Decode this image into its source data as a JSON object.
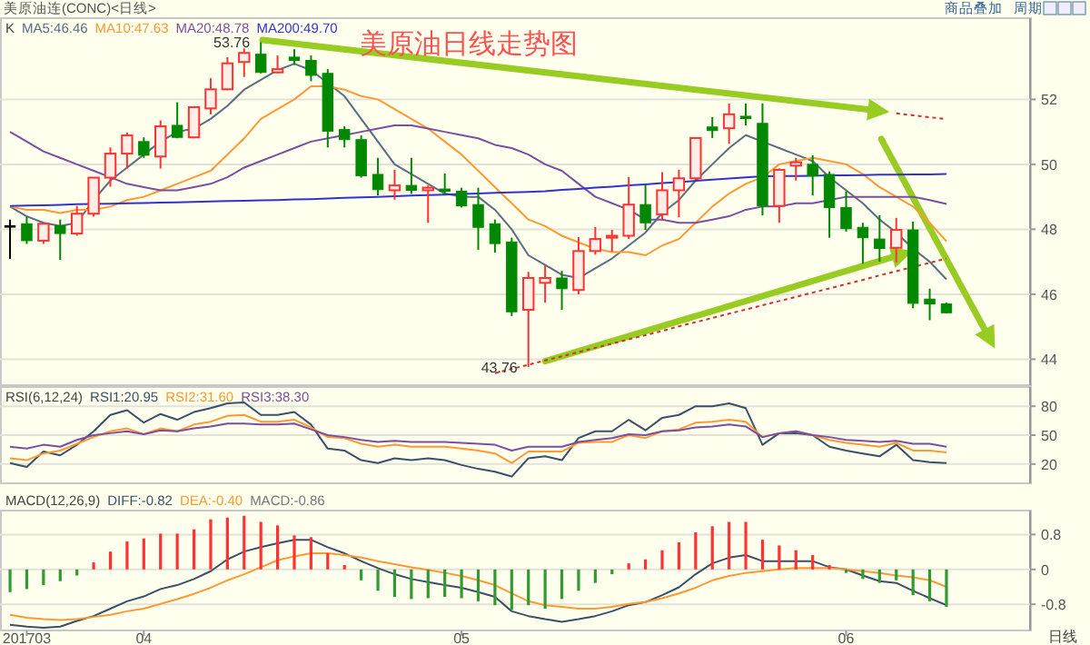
{
  "chart_data": [
    {
      "type": "candlestick",
      "title": "美原油日线走势图",
      "legend_title": "K",
      "legend": "top left",
      "grid": "y",
      "tick_labels": "y",
      "ylim": [
        43.2,
        54.5
      ],
      "yticks": [
        44,
        46,
        48,
        50,
        52
      ],
      "categories": [
        null,
        null,
        null,
        null,
        null,
        null,
        null,
        null,
        null,
        null,
        null,
        null,
        null,
        null,
        null,
        null,
        null,
        null,
        null,
        null,
        null,
        null,
        null,
        null,
        null,
        null,
        null,
        null,
        null,
        null,
        null,
        null,
        null,
        null,
        null,
        null,
        null,
        null,
        null,
        null,
        null,
        null,
        null,
        null,
        null,
        null,
        null,
        null,
        null,
        null,
        null,
        null,
        null,
        null,
        null,
        null,
        null
      ],
      "ohlc": [
        [
          48.11,
          48.3,
          47.09,
          48.11
        ],
        [
          48.17,
          48.39,
          47.55,
          47.65
        ],
        [
          47.65,
          48.17,
          47.55,
          48.17
        ],
        [
          48.11,
          48.3,
          47.06,
          47.87
        ],
        [
          47.87,
          48.72,
          47.8,
          48.48
        ],
        [
          48.48,
          49.59,
          48.39,
          49.59
        ],
        [
          49.59,
          50.52,
          49.31,
          50.33
        ],
        [
          50.33,
          50.98,
          49.87,
          50.89
        ],
        [
          50.7,
          50.83,
          50.2,
          50.28
        ],
        [
          50.24,
          51.35,
          49.87,
          51.17
        ],
        [
          51.2,
          51.91,
          50.8,
          50.83
        ],
        [
          50.83,
          51.76,
          50.8,
          51.76
        ],
        [
          51.72,
          52.65,
          51.54,
          52.31
        ],
        [
          52.31,
          53.3,
          52.28,
          53.11
        ],
        [
          53.15,
          53.57,
          52.69,
          53.43
        ],
        [
          53.39,
          53.76,
          52.8,
          52.83
        ],
        [
          52.83,
          53.35,
          52.8,
          52.93
        ],
        [
          53.3,
          53.54,
          53.06,
          53.2
        ],
        [
          53.2,
          53.35,
          52.56,
          52.74
        ],
        [
          52.8,
          52.93,
          50.52,
          51.02
        ],
        [
          51.07,
          51.17,
          50.52,
          50.76
        ],
        [
          50.76,
          50.89,
          49.59,
          49.65
        ],
        [
          49.69,
          50.2,
          49.04,
          49.22
        ],
        [
          49.2,
          49.83,
          48.91,
          49.35
        ],
        [
          49.35,
          50.2,
          49.09,
          49.2
        ],
        [
          49.2,
          49.35,
          48.2,
          49.28
        ],
        [
          49.24,
          49.72,
          49.09,
          49.17
        ],
        [
          49.17,
          49.28,
          48.67,
          48.72
        ],
        [
          48.76,
          49.28,
          47.37,
          48.06
        ],
        [
          48.17,
          48.3,
          47.28,
          47.56
        ],
        [
          47.61,
          47.74,
          45.33,
          45.46
        ],
        [
          45.52,
          46.69,
          43.76,
          46.5
        ],
        [
          46.35,
          46.89,
          45.74,
          46.5
        ],
        [
          46.5,
          46.72,
          45.52,
          46.17
        ],
        [
          46.13,
          47.76,
          46.0,
          47.33
        ],
        [
          47.33,
          48.07,
          47.22,
          47.7
        ],
        [
          47.74,
          47.98,
          47.31,
          47.8
        ],
        [
          47.8,
          49.61,
          47.7,
          48.76
        ],
        [
          48.76,
          49.37,
          47.98,
          48.2
        ],
        [
          48.46,
          49.76,
          48.28,
          49.2
        ],
        [
          49.2,
          49.83,
          48.37,
          49.57
        ],
        [
          49.57,
          50.81,
          49.52,
          50.81
        ],
        [
          51.15,
          51.46,
          50.81,
          51.04
        ],
        [
          51.11,
          51.87,
          50.63,
          51.54
        ],
        [
          51.48,
          51.87,
          51.2,
          51.41
        ],
        [
          51.26,
          51.87,
          48.43,
          48.72
        ],
        [
          48.72,
          49.87,
          48.2,
          49.83
        ],
        [
          49.96,
          50.2,
          49.5,
          50.06
        ],
        [
          50.0,
          50.28,
          49.04,
          49.65
        ],
        [
          49.69,
          49.78,
          47.74,
          48.67
        ],
        [
          48.67,
          49.17,
          47.93,
          48.02
        ],
        [
          48.06,
          48.2,
          46.94,
          47.74
        ],
        [
          47.7,
          48.43,
          47.0,
          47.41
        ],
        [
          47.43,
          48.35,
          46.98,
          47.98
        ],
        [
          47.98,
          48.24,
          45.57,
          45.72
        ],
        [
          45.85,
          46.17,
          45.2,
          45.7
        ],
        [
          45.7,
          45.74,
          45.41,
          45.43
        ]
      ],
      "colors": [
        "#000000",
        "#008800",
        "#ff3333",
        "#008800",
        "#ff3333",
        "#ff3333",
        "#ff3333",
        "#ff3333",
        "#008800",
        "#ff3333",
        "#008800",
        "#ff3333",
        "#ff3333",
        "#ff3333",
        "#ff3333",
        "#008800",
        "#ff3333",
        "#008800",
        "#008800",
        "#008800",
        "#008800",
        "#008800",
        "#008800",
        "#ff3333",
        "#008800",
        "#ff3333",
        "#008800",
        "#008800",
        "#008800",
        "#008800",
        "#008800",
        "#ff3333",
        "#ff3333",
        "#008800",
        "#ff3333",
        "#ff3333",
        "#ff3333",
        "#ff3333",
        "#008800",
        "#ff3333",
        "#ff3333",
        "#ff3333",
        "#008800",
        "#ff3333",
        "#008800",
        "#008800",
        "#ff3333",
        "#ff3333",
        "#008800",
        "#008800",
        "#008800",
        "#008800",
        "#008800",
        "#ff3333",
        "#008800",
        "#008800",
        "#008800"
      ],
      "series": [
        {
          "name": "MA5:46.46",
          "type": "line",
          "color": "#5a6e82",
          "values": [
            48.7,
            48.4,
            48.2,
            48.1,
            48.2,
            48.9,
            49.5,
            49.9,
            50.3,
            50.7,
            51.0,
            51.1,
            51.4,
            51.8,
            52.3,
            52.6,
            52.9,
            53.1,
            52.9,
            52.5,
            52.1,
            51.4,
            50.7,
            50.0,
            49.7,
            49.4,
            49.1,
            49.0,
            49.0,
            48.6,
            48.0,
            47.2,
            46.9,
            46.6,
            46.5,
            46.8,
            47.1,
            47.5,
            47.9,
            48.5,
            48.9,
            49.5,
            50.0,
            50.5,
            50.9,
            50.7,
            50.5,
            50.3,
            50.1,
            49.6,
            49.2,
            48.8,
            48.3,
            47.9,
            47.4,
            47.0,
            46.46
          ]
        },
        {
          "name": "MA10:47.63",
          "type": "line",
          "color": "#ff9933",
          "values": [
            48.7,
            48.6,
            48.6,
            48.5,
            48.6,
            48.6,
            48.7,
            48.9,
            49.0,
            49.2,
            49.4,
            49.6,
            49.8,
            50.3,
            50.8,
            51.4,
            51.7,
            52.0,
            52.4,
            52.4,
            52.3,
            52.1,
            52.0,
            51.7,
            51.4,
            51.1,
            50.7,
            50.3,
            49.8,
            49.3,
            48.8,
            48.3,
            48.1,
            47.8,
            47.6,
            47.4,
            47.3,
            47.3,
            47.2,
            47.5,
            47.7,
            48.2,
            48.7,
            49.1,
            49.4,
            49.6,
            50.0,
            50.1,
            50.2,
            50.1,
            50.0,
            49.7,
            49.3,
            49.0,
            48.7,
            48.2,
            47.63
          ]
        },
        {
          "name": "MA20:48.78",
          "type": "line",
          "color": "#7b4fa0",
          "values": [
            51.0,
            50.7,
            50.4,
            50.2,
            50.0,
            49.8,
            49.6,
            49.4,
            49.3,
            49.2,
            49.2,
            49.3,
            49.4,
            49.6,
            49.9,
            50.1,
            50.3,
            50.5,
            50.7,
            50.8,
            50.9,
            51.0,
            51.1,
            51.2,
            51.2,
            51.1,
            51.0,
            50.9,
            50.8,
            50.6,
            50.5,
            50.3,
            50.0,
            49.8,
            49.4,
            49.0,
            48.8,
            48.6,
            48.3,
            48.3,
            48.2,
            48.2,
            48.3,
            48.4,
            48.6,
            48.7,
            48.7,
            48.8,
            48.8,
            48.9,
            49.0,
            49.0,
            49.0,
            49.0,
            49.0,
            48.9,
            48.78
          ]
        },
        {
          "name": "MA200:49.70",
          "type": "line",
          "color": "#3333cc",
          "values": [
            48.72,
            48.73,
            48.74,
            48.75,
            48.77,
            48.78,
            48.79,
            48.8,
            48.81,
            48.82,
            48.83,
            48.84,
            48.86,
            48.87,
            48.88,
            48.89,
            48.9,
            48.92,
            48.93,
            48.95,
            48.97,
            48.98,
            49.0,
            49.02,
            49.04,
            49.05,
            49.07,
            49.09,
            49.1,
            49.12,
            49.14,
            49.15,
            49.17,
            49.21,
            49.24,
            49.28,
            49.31,
            49.35,
            49.38,
            49.42,
            49.45,
            49.49,
            49.53,
            49.56,
            49.6,
            49.63,
            49.64,
            49.64,
            49.65,
            49.66,
            49.66,
            49.67,
            49.68,
            49.68,
            49.69,
            49.69,
            49.7
          ]
        },
        {
          "type": "line",
          "color": "#cc3333",
          "line_style": "dotted",
          "values": [
            null,
            null,
            null,
            null,
            null,
            null,
            null,
            null,
            null,
            null,
            null,
            null,
            null,
            null,
            null,
            null,
            null,
            null,
            null,
            null,
            null,
            null,
            null,
            null,
            null,
            null,
            null,
            null,
            null,
            null,
            null,
            null,
            null,
            null,
            null,
            null,
            null,
            null,
            null,
            null,
            null,
            null,
            null,
            null,
            null,
            null,
            null,
            null,
            null,
            null,
            null,
            null,
            null,
            51.57,
            51.51,
            51.45,
            51.39
          ]
        },
        {
          "type": "line",
          "color": "#cc3333",
          "line_style": "dotted",
          "values": [
            null,
            null,
            null,
            null,
            null,
            null,
            null,
            null,
            null,
            null,
            null,
            null,
            null,
            null,
            null,
            null,
            null,
            null,
            null,
            null,
            null,
            null,
            null,
            null,
            null,
            null,
            null,
            null,
            null,
            43.57,
            43.7,
            43.83,
            43.96,
            44.09,
            44.22,
            44.35,
            44.48,
            44.61,
            44.74,
            44.87,
            45.01,
            45.14,
            45.27,
            45.4,
            45.53,
            45.66,
            45.79,
            45.92,
            46.05,
            46.18,
            46.31,
            46.44,
            46.58,
            46.71,
            46.84,
            46.97,
            47.1
          ]
        }
      ],
      "annotations": [
        "美原油连(CONC)<日线>",
        "商品叠加",
        "周期",
        "53.76",
        "43.76"
      ]
    },
    {
      "type": "line",
      "legend_title": "RSI(6,12,24)",
      "legend": "top left",
      "grid": "y",
      "tick_labels": "y",
      "ylim": [
        0,
        100
      ],
      "yticks": [
        20,
        50,
        80
      ],
      "categories": [
        null,
        null,
        null,
        null,
        null,
        null,
        null,
        null,
        null,
        null,
        null,
        null,
        null,
        null,
        null,
        null,
        null,
        null,
        null,
        null,
        null,
        null,
        null,
        null,
        null,
        null,
        null,
        null,
        null,
        null,
        null,
        null,
        null,
        null,
        null,
        null,
        null,
        null,
        null,
        null,
        null,
        null,
        null,
        null,
        null,
        null,
        null,
        null,
        null,
        null,
        null,
        null,
        null,
        null,
        null,
        null,
        null
      ],
      "series": [
        {
          "name": "RSI1:20.95",
          "color": "#3a5068",
          "values": [
            21,
            17,
            33,
            29,
            40,
            54,
            71,
            76,
            63,
            72,
            66,
            74,
            78,
            83,
            84,
            71,
            71,
            74,
            61,
            36,
            34,
            24,
            21,
            26,
            24,
            26,
            24,
            19,
            15,
            12,
            7,
            26,
            28,
            24,
            47,
            54,
            54,
            66,
            55,
            68,
            71,
            80,
            80,
            83,
            78,
            40,
            52,
            52,
            50,
            38,
            34,
            31,
            28,
            40,
            24,
            22,
            21
          ]
        },
        {
          "name": "RSI2:31.60",
          "color": "#ff9933",
          "values": [
            26,
            24,
            31,
            34,
            41,
            48,
            54,
            57,
            51,
            57,
            54,
            61,
            64,
            70,
            71,
            64,
            64,
            66,
            58,
            48,
            47,
            41,
            38,
            40,
            38,
            38,
            38,
            36,
            34,
            31,
            21,
            33,
            33,
            33,
            42,
            43,
            43,
            50,
            47,
            54,
            56,
            63,
            64,
            66,
            64,
            48,
            52,
            54,
            50,
            45,
            42,
            40,
            38,
            42,
            34,
            34,
            32
          ]
        },
        {
          "name": "RSI3:38.30",
          "color": "#7b4fa0",
          "values": [
            38,
            36,
            40,
            38,
            45,
            50,
            52,
            54,
            51,
            55,
            54,
            57,
            59,
            62,
            62,
            61,
            61,
            62,
            56,
            50,
            48,
            45,
            43,
            44,
            43,
            43,
            43,
            42,
            41,
            40,
            34,
            38,
            38,
            38,
            43,
            45,
            47,
            51,
            50,
            54,
            55,
            58,
            59,
            61,
            59,
            48,
            52,
            54,
            50,
            48,
            45,
            44,
            43,
            44,
            41,
            41,
            38
          ]
        }
      ]
    },
    {
      "type": "bar",
      "legend_title": "MACD(12,26,9)",
      "legend": "top left",
      "grid": "y",
      "ylim": [
        -1.4,
        1.35
      ],
      "yticks": [
        0.8,
        0,
        -0.8
      ],
      "categories": [
        null,
        "201703",
        null,
        null,
        null,
        null,
        null,
        null,
        "04",
        null,
        null,
        null,
        null,
        null,
        null,
        null,
        null,
        null,
        null,
        null,
        null,
        null,
        null,
        null,
        null,
        null,
        null,
        "05",
        null,
        null,
        null,
        null,
        null,
        null,
        null,
        null,
        null,
        null,
        null,
        null,
        null,
        null,
        null,
        null,
        null,
        null,
        null,
        null,
        null,
        null,
        "06",
        null,
        null,
        null,
        null,
        null,
        null
      ],
      "series": [
        {
          "name": "DIFF:-0.82",
          "type": "line",
          "color": "#3a5068",
          "values": [
            -1.27,
            -1.31,
            -1.34,
            -1.31,
            -1.18,
            -1.07,
            -0.9,
            -0.73,
            -0.62,
            -0.45,
            -0.36,
            -0.22,
            -0.04,
            0.23,
            0.41,
            0.51,
            0.6,
            0.68,
            0.68,
            0.51,
            0.37,
            0.19,
            0.03,
            -0.11,
            -0.22,
            -0.29,
            -0.36,
            -0.42,
            -0.52,
            -0.63,
            -0.96,
            -1.07,
            -1.14,
            -1.2,
            -1.14,
            -1.07,
            -0.96,
            -0.82,
            -0.75,
            -0.59,
            -0.41,
            -0.11,
            0.14,
            0.27,
            0.33,
            0.19,
            0.19,
            0.19,
            0.19,
            0.05,
            0.0,
            -0.14,
            -0.27,
            -0.31,
            -0.49,
            -0.66,
            -0.82
          ]
        },
        {
          "name": "DEA:-0.40",
          "type": "line",
          "color": "#ff9933",
          "values": [
            -1.04,
            -1.11,
            -1.14,
            -1.16,
            -1.14,
            -1.09,
            -1.04,
            -0.96,
            -0.9,
            -0.79,
            -0.68,
            -0.56,
            -0.42,
            -0.25,
            -0.11,
            0.05,
            0.21,
            0.3,
            0.37,
            0.37,
            0.33,
            0.27,
            0.19,
            0.12,
            0.05,
            -0.01,
            -0.08,
            -0.15,
            -0.25,
            -0.36,
            -0.55,
            -0.73,
            -0.82,
            -0.86,
            -0.9,
            -0.9,
            -0.86,
            -0.79,
            -0.75,
            -0.66,
            -0.55,
            -0.42,
            -0.25,
            -0.15,
            -0.08,
            -0.04,
            0.0,
            0.03,
            0.03,
            0.03,
            0.0,
            -0.04,
            -0.08,
            -0.14,
            -0.18,
            -0.25,
            -0.4
          ]
        },
        {
          "name": "MACD:-0.86",
          "type": "bar",
          "color": "#777777",
          "values": [
            -0.52,
            -0.45,
            -0.36,
            -0.27,
            -0.14,
            0.16,
            0.41,
            0.64,
            0.71,
            0.82,
            0.82,
            0.92,
            1.15,
            1.19,
            1.23,
            1.09,
            1.01,
            0.78,
            0.74,
            0.37,
            0.1,
            -0.25,
            -0.49,
            -0.63,
            -0.68,
            -0.66,
            -0.63,
            -0.66,
            -0.73,
            -0.82,
            -0.93,
            -0.82,
            -0.9,
            -0.68,
            -0.49,
            -0.31,
            -0.11,
            0.14,
            0.23,
            0.44,
            0.62,
            0.85,
            0.99,
            1.09,
            1.09,
            0.68,
            0.55,
            0.44,
            0.33,
            0.1,
            -0.08,
            -0.22,
            -0.31,
            -0.25,
            -0.59,
            -0.73,
            -0.86
          ],
          "colors": [
            "#339933",
            "#339933",
            "#339933",
            "#339933",
            "#339933",
            "#ff3333",
            "#ff3333",
            "#ff3333",
            "#ff3333",
            "#ff3333",
            "#ff3333",
            "#ff3333",
            "#ff3333",
            "#ff3333",
            "#ff3333",
            "#ff3333",
            "#ff3333",
            "#ff3333",
            "#ff3333",
            "#ff3333",
            "#ff3333",
            "#339933",
            "#339933",
            "#339933",
            "#339933",
            "#339933",
            "#339933",
            "#339933",
            "#339933",
            "#339933",
            "#339933",
            "#339933",
            "#339933",
            "#339933",
            "#339933",
            "#339933",
            "#339933",
            "#ff3333",
            "#ff3333",
            "#ff3333",
            "#ff3333",
            "#ff3333",
            "#ff3333",
            "#ff3333",
            "#ff3333",
            "#ff3333",
            "#ff3333",
            "#ff3333",
            "#ff3333",
            "#ff3333",
            "#339933",
            "#339933",
            "#339933",
            "#339933",
            "#339933",
            "#339933",
            "#339933"
          ]
        }
      ],
      "annotations": [
        "日线"
      ]
    }
  ]
}
